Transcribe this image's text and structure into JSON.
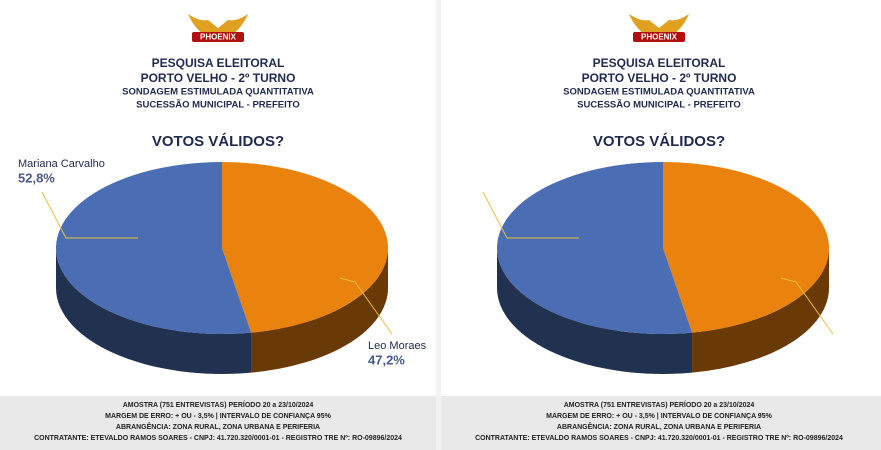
{
  "chart_data": [
    {
      "type": "pie",
      "logo": "PHOENIX",
      "title": "PESQUISA ELEITORAL",
      "subtitle": [
        "PORTO VELHO - 2º TURNO",
        "SONDAGEM ESTIMULADA QUANTITATIVA",
        "SUCESSÃO MUNICIPAL - PREFEITO"
      ],
      "question": "VOTOS VÁLIDOS?",
      "categories": [
        "Mariana Carvalho",
        "Leo Moraes"
      ],
      "values": [
        52.8,
        47.2
      ],
      "value_labels": [
        "52,8%",
        "47,2%"
      ],
      "colors": [
        "#4a6db3",
        "#ea830e"
      ],
      "footer": [
        "AMOSTRA (751 ENTREVISTAS) PERÍODO 20 a 23/10/2024",
        "MARGEM DE ERRO: + OU - 3,5% | INTERVALO DE CONFIANÇA 95%",
        "ABRANGÊNCIA: ZONA RURAL, ZONA URBANA E PERIFERIA",
        "CONTRATANTE: ETEVALDO RAMOS SOARES - CNPJ: 41.720.320/0001-01 - REGISTRO TRE Nº: RO-09896/2024"
      ]
    },
    {
      "type": "pie",
      "logo": "PHOENIX",
      "title": "PESQUISA ELEITORAL",
      "subtitle": [
        "PORTO VELHO - 2º TURNO",
        "SONDAGEM ESTIMULADA QUANTITATIVA",
        "SUCESSÃO MUNICIPAL - PREFEITO"
      ],
      "question": "VOTOS VÁLIDOS?",
      "categories": [
        null,
        null
      ],
      "values": [
        52.8,
        47.2
      ],
      "colors": [
        "#4a6db3",
        "#ea830e"
      ],
      "footer": [
        "AMOSTRA (751 ENTREVISTAS) PERÍODO 20 a 23/10/2024",
        "MARGEM DE ERRO: + OU - 3,5% | INTERVALO DE CONFIANÇA 95%",
        "ABRANGÊNCIA: ZONA RURAL, ZONA URBANA E PERIFERIA",
        "CONTRATANTE: ETEVALDO RAMOS SOARES - CNPJ: 41.720.320/0001-01 - REGISTRO TRE Nº: RO-09896/2024"
      ]
    }
  ]
}
